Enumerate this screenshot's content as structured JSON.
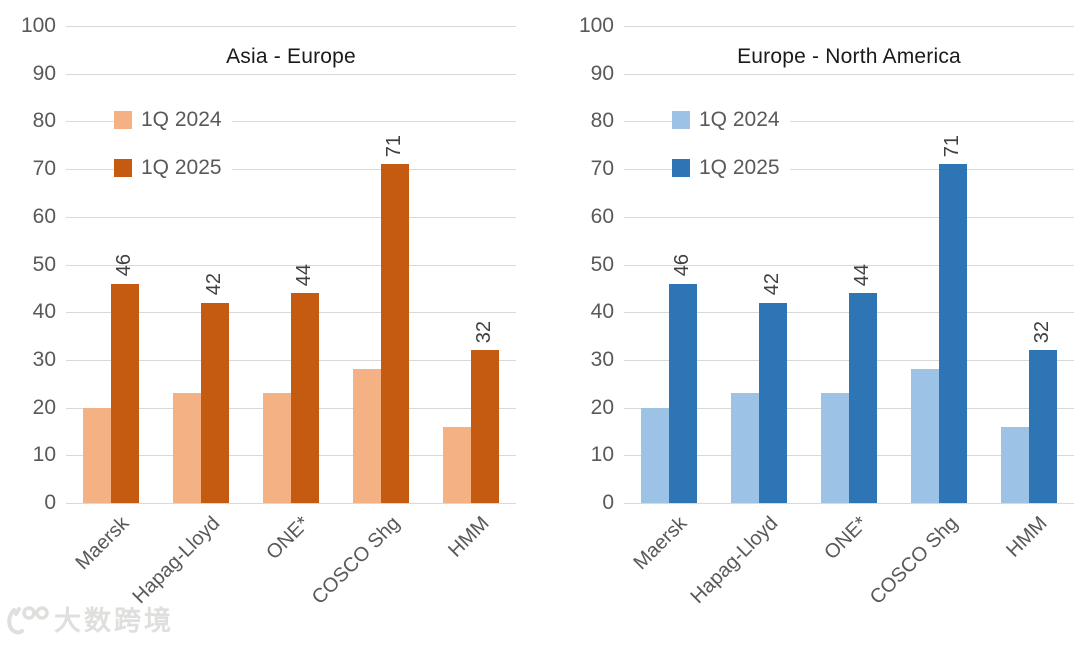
{
  "page": {
    "background": "#FFFFFF"
  },
  "style": {
    "grid_color": "#D9D9D9",
    "axis_text_color": "#595959",
    "data_label_color": "#404040",
    "title_color": "#1A1A1A",
    "watermark_color": "#E0DFDD"
  },
  "watermark": {
    "logo": "100",
    "text": "大数跨境"
  },
  "chart_data": [
    {
      "type": "bar",
      "title": "Asia - Europe",
      "categories": [
        "Maersk",
        "Hapag-Lloyd",
        "ONE*",
        "COSCO Shg",
        "HMM"
      ],
      "series": [
        {
          "name": "1Q 2024",
          "color": "#F4B183",
          "values": [
            20,
            23,
            23,
            28,
            16
          ],
          "data_labels": false
        },
        {
          "name": "1Q 2025",
          "color": "#C55A11",
          "values": [
            46,
            42,
            44,
            71,
            32
          ],
          "data_labels": true
        }
      ],
      "xlabel": "",
      "ylabel": "",
      "ylim": [
        0,
        100
      ],
      "ytick_step": 10,
      "grid": true,
      "legend_position": "inside-top-left"
    },
    {
      "type": "bar",
      "title": "Europe - North America",
      "categories": [
        "Maersk",
        "Hapag-Lloyd",
        "ONE*",
        "COSCO Shg",
        "HMM"
      ],
      "series": [
        {
          "name": "1Q 2024",
          "color": "#9CC2E5",
          "values": [
            20,
            23,
            23,
            28,
            16
          ],
          "data_labels": false
        },
        {
          "name": "1Q 2025",
          "color": "#2E75B6",
          "values": [
            46,
            42,
            44,
            71,
            32
          ],
          "data_labels": true
        }
      ],
      "xlabel": "",
      "ylabel": "",
      "ylim": [
        0,
        100
      ],
      "ytick_step": 10,
      "grid": true,
      "legend_position": "inside-top-left"
    }
  ]
}
